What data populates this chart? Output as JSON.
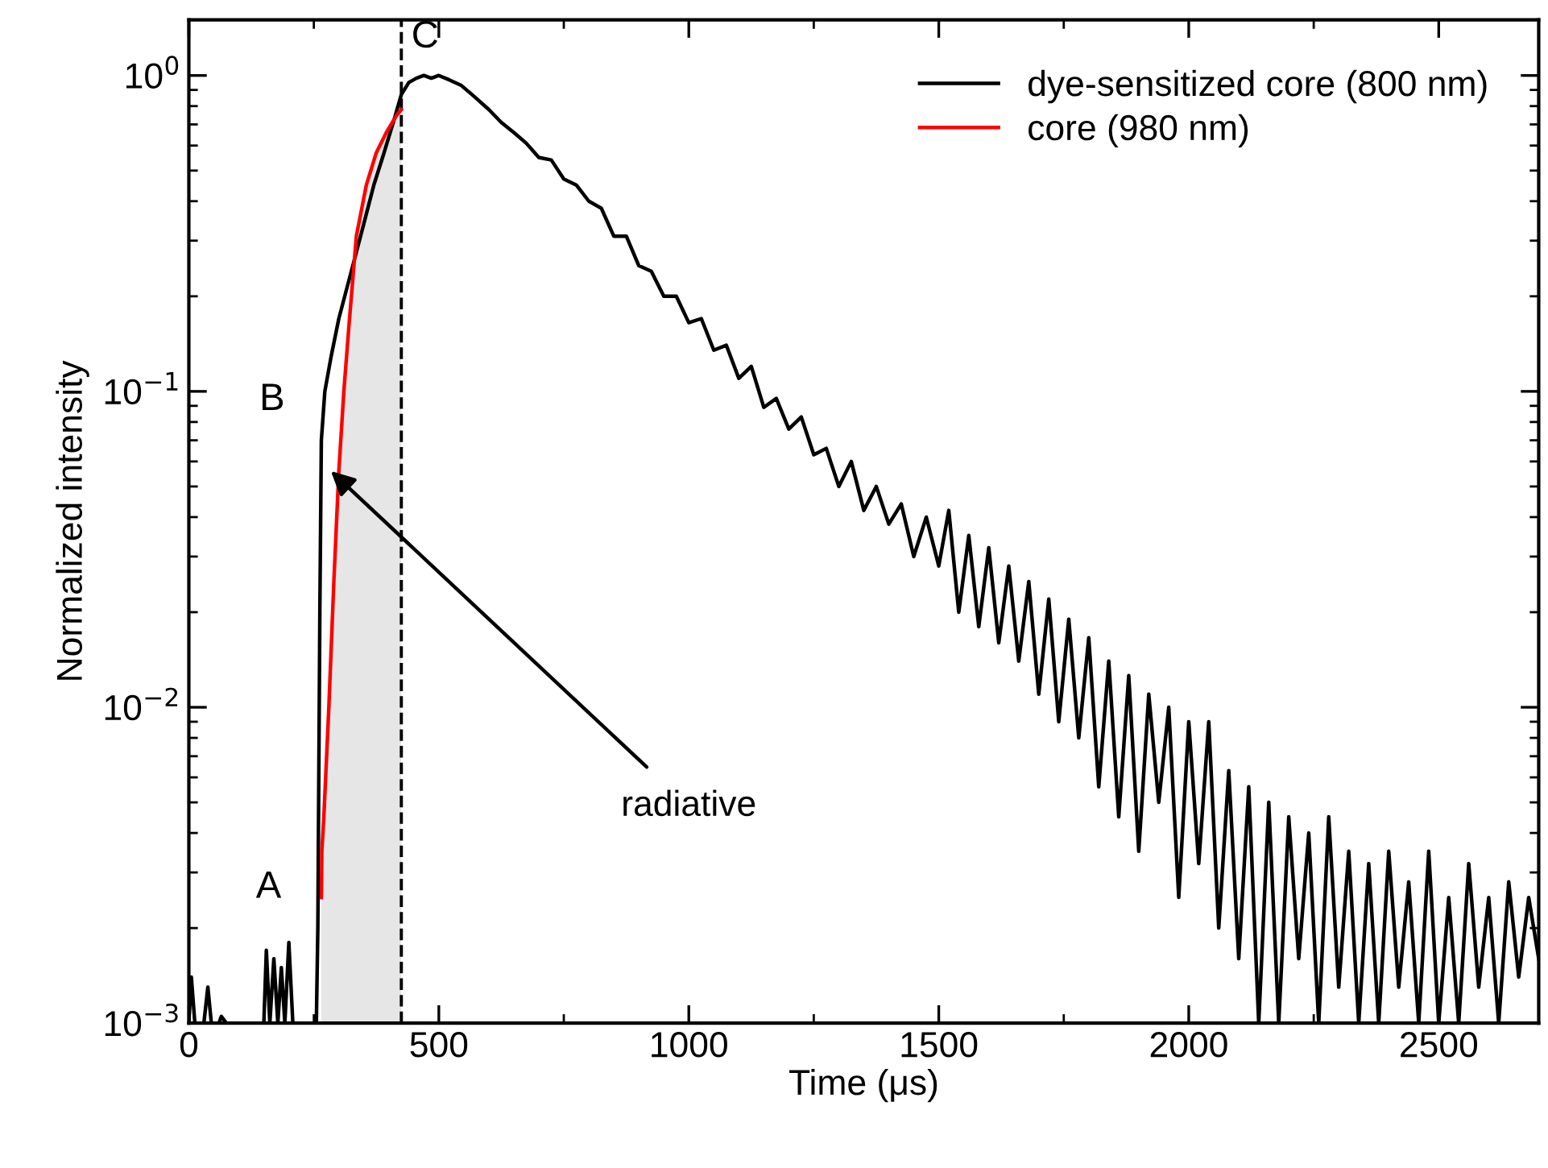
{
  "chart_data": {
    "type": "line",
    "xlabel": "Time (μs)",
    "ylabel": "Normalized intensity",
    "log": "y",
    "xlim": [
      0,
      2700
    ],
    "ylim": [
      0.001,
      1.5
    ],
    "xticks": [
      0,
      {
        "value": 250,
        "label": null
      },
      500,
      {
        "value": 750,
        "label": null
      },
      1000,
      {
        "value": 1250,
        "label": null
      },
      1500,
      {
        "value": 1750,
        "label": null
      },
      2000,
      {
        "value": 2250,
        "label": null
      },
      2500
    ],
    "yticks": [
      {
        "value": 0.001,
        "label": "10$^{−3}$"
      },
      {
        "value": 0.01,
        "label": "10$^{−2}$"
      },
      {
        "value": 0.1,
        "label": "10$^{−1}$"
      },
      {
        "value": 1,
        "label": "10$^{0}$"
      }
    ],
    "legend": "top right",
    "grid": false,
    "series": [
      {
        "name": "dye-sensitized core (800 nm)",
        "color": "#000000",
        "x": [
          0,
          5,
          12,
          30,
          38,
          45,
          60,
          65,
          75,
          150,
          155,
          162,
          170,
          178,
          185,
          192,
          200,
          208,
          215,
          240,
          255,
          258,
          262,
          265,
          272,
          285,
          300,
          325,
          348,
          370,
          389,
          410,
          425,
          440,
          455,
          470,
          485,
          500,
          520,
          545,
          570,
          600,
          625,
          650,
          675,
          700,
          725,
          750,
          775,
          800,
          825,
          850,
          875,
          900,
          925,
          950,
          975,
          1000,
          1025,
          1050,
          1075,
          1100,
          1125,
          1150,
          1175,
          1200,
          1225,
          1250,
          1275,
          1300,
          1325,
          1350,
          1375,
          1400,
          1425,
          1450,
          1475,
          1500,
          1520,
          1540,
          1560,
          1580,
          1600,
          1620,
          1640,
          1660,
          1680,
          1700,
          1720,
          1740,
          1760,
          1780,
          1800,
          1820,
          1840,
          1860,
          1880,
          1900,
          1920,
          1940,
          1960,
          1980,
          2000,
          2020,
          2040,
          2060,
          2080,
          2100,
          2120,
          2140,
          2160,
          2180,
          2200,
          2220,
          2240,
          2260,
          2280,
          2300,
          2320,
          2340,
          2360,
          2380,
          2400,
          2420,
          2440,
          2460,
          2480,
          2500,
          2520,
          2540,
          2560,
          2580,
          2600,
          2620,
          2640,
          2660,
          2680,
          2700
        ],
        "values": [
          0.001,
          0.0014,
          0.001,
          0.001,
          0.0013,
          0.001,
          0.001,
          0.00105,
          0.001,
          0.001,
          0.0017,
          0.001,
          0.0016,
          0.001,
          0.0015,
          0.001,
          0.0018,
          0.001,
          0.001,
          0.001,
          0.001,
          0.002,
          0.02,
          0.07,
          0.1,
          0.13,
          0.17,
          0.24,
          0.33,
          0.45,
          0.56,
          0.72,
          0.87,
          0.95,
          0.98,
          1.0,
          0.98,
          1.0,
          0.97,
          0.93,
          0.86,
          0.78,
          0.71,
          0.66,
          0.61,
          0.55,
          0.54,
          0.47,
          0.45,
          0.4,
          0.38,
          0.31,
          0.31,
          0.25,
          0.24,
          0.2,
          0.2,
          0.165,
          0.17,
          0.135,
          0.14,
          0.11,
          0.12,
          0.089,
          0.095,
          0.076,
          0.083,
          0.063,
          0.066,
          0.05,
          0.06,
          0.042,
          0.05,
          0.038,
          0.044,
          0.03,
          0.04,
          0.028,
          0.042,
          0.02,
          0.035,
          0.018,
          0.032,
          0.016,
          0.028,
          0.014,
          0.025,
          0.011,
          0.022,
          0.009,
          0.019,
          0.008,
          0.0166,
          0.0056,
          0.014,
          0.0045,
          0.0126,
          0.0035,
          0.011,
          0.005,
          0.01,
          0.0025,
          0.009,
          0.0032,
          0.009,
          0.002,
          0.0063,
          0.0016,
          0.0056,
          0.001,
          0.005,
          0.001,
          0.0045,
          0.0016,
          0.004,
          0.001,
          0.0045,
          0.0013,
          0.0035,
          0.001,
          0.0032,
          0.001,
          0.0035,
          0.0013,
          0.0028,
          0.001,
          0.0035,
          0.001,
          0.0025,
          0.001,
          0.0032,
          0.0013,
          0.0025,
          0.001,
          0.0028,
          0.0014,
          0.0025,
          0.0016
        ]
      },
      {
        "name": "core (980 nm)",
        "color": "#ff0000",
        "x": [
          265,
          266,
          270,
          280,
          290,
          300,
          310,
          320,
          335,
          355,
          375,
          395,
          416,
          425
        ],
        "values": [
          0.0025,
          0.0035,
          0.0045,
          0.01,
          0.025,
          0.056,
          0.1,
          0.16,
          0.31,
          0.45,
          0.57,
          0.66,
          0.75,
          0.78
        ],
        "lower": [
          0.001,
          0.001,
          0.001,
          0.001,
          0.001,
          0.001,
          0.001,
          0.001,
          0.001,
          0.001,
          0.001,
          0.001,
          0.001,
          0.001
        ],
        "upper": [
          0.0025,
          0.0035,
          0.0045,
          0.01,
          0.025,
          0.056,
          0.1,
          0.16,
          0.31,
          0.45,
          0.57,
          0.66,
          0.75,
          0.78
        ]
      }
    ],
    "ref_lines": [
      {
        "axis": "x",
        "value": 425,
        "label": "C",
        "color": "#000000",
        "line_style": "dashed"
      }
    ],
    "annotations": [
      {
        "text": "A",
        "x": 258,
        "y": 0.002
      },
      {
        "text": "B",
        "x": 265,
        "y": 0.07
      },
      {
        "text": "radiative",
        "x": 284,
        "y": 0.056
      }
    ]
  }
}
